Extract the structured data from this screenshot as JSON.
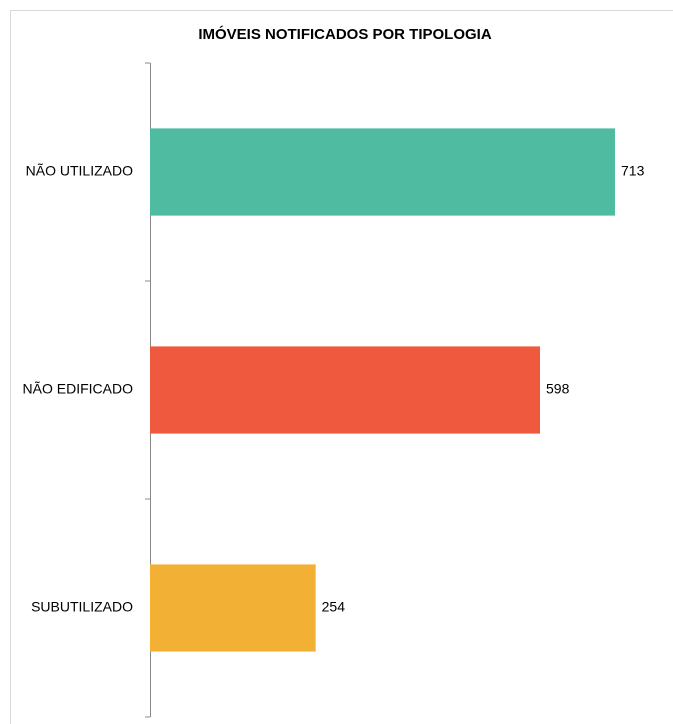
{
  "chart_data": {
    "type": "hbar",
    "title": "IMÓVEIS NOTIFICADOS POR TIPOLOGIA",
    "categories": [
      "NÃO UTILIZADO",
      "NÃO EDIFICADO",
      "SUBUTILIZADO"
    ],
    "values": [
      713,
      598,
      254
    ],
    "colors": [
      "#4fbba0",
      "#ef5a3e",
      "#f2b035"
    ]
  }
}
